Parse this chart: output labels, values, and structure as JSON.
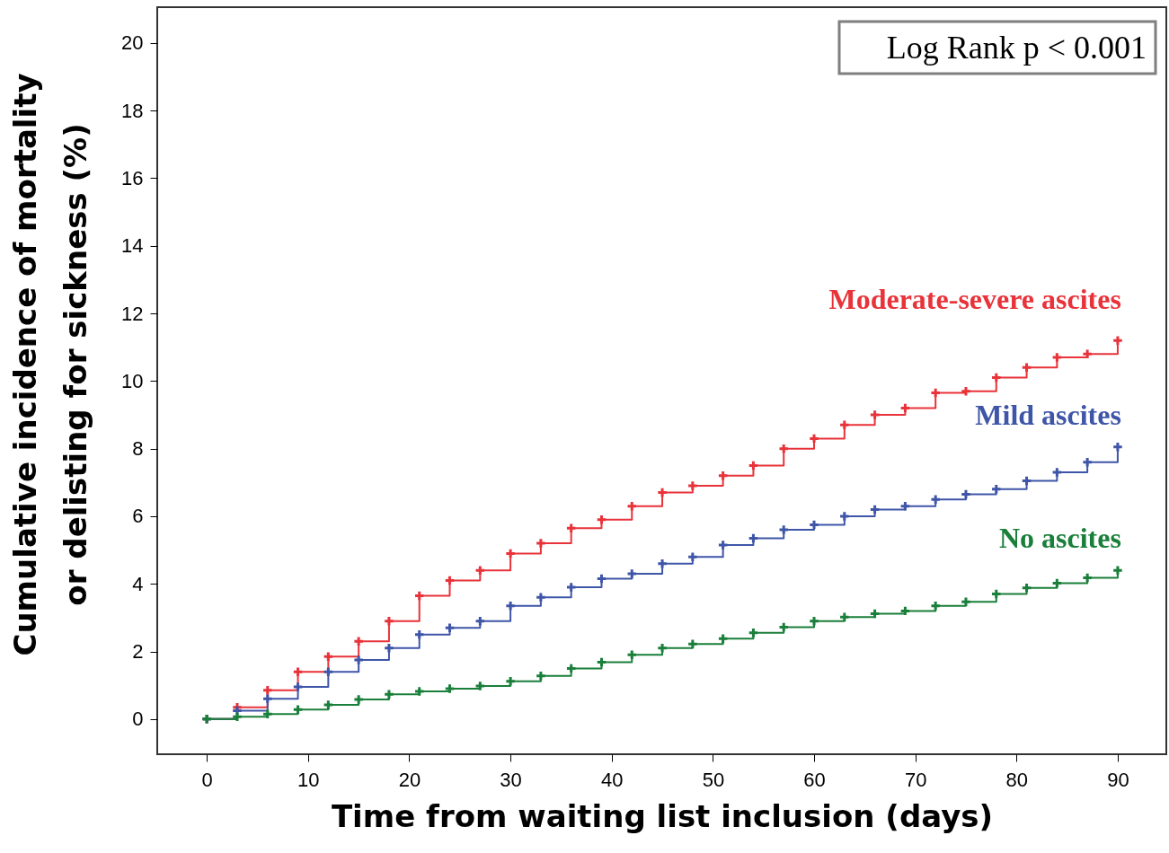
{
  "chart_data": {
    "type": "step",
    "xlabel": "Time from waiting list inclusion (days)",
    "ylabel": "Cumulative incidence of mortality\nor delisting for sickness (%)",
    "x": [
      0,
      3,
      6,
      9,
      12,
      15,
      18,
      21,
      24,
      27,
      30,
      33,
      36,
      39,
      42,
      45,
      48,
      51,
      54,
      57,
      60,
      63,
      66,
      69,
      72,
      75,
      78,
      81,
      84,
      87,
      90
    ],
    "series": [
      {
        "name": "Moderate-severe ascites",
        "color": "#e8333a",
        "values": [
          0,
          0.35,
          0.85,
          1.4,
          1.85,
          2.3,
          2.9,
          3.65,
          4.1,
          4.4,
          4.9,
          5.2,
          5.65,
          5.9,
          6.3,
          6.7,
          6.9,
          7.2,
          7.5,
          8.0,
          8.3,
          8.7,
          9.0,
          9.2,
          9.65,
          9.7,
          10.1,
          10.4,
          10.7,
          10.8,
          11.2
        ]
      },
      {
        "name": "Mild ascites",
        "color": "#3f56a8",
        "values": [
          0,
          0.25,
          0.6,
          0.95,
          1.4,
          1.75,
          2.1,
          2.5,
          2.7,
          2.9,
          3.35,
          3.6,
          3.9,
          4.15,
          4.3,
          4.6,
          4.8,
          5.15,
          5.35,
          5.6,
          5.75,
          6.0,
          6.2,
          6.3,
          6.5,
          6.65,
          6.8,
          7.05,
          7.3,
          7.6,
          8.05
        ]
      },
      {
        "name": "No ascites",
        "color": "#1a7f3a",
        "values": [
          0,
          0.07,
          0.15,
          0.28,
          0.42,
          0.58,
          0.73,
          0.82,
          0.9,
          0.98,
          1.12,
          1.28,
          1.5,
          1.68,
          1.9,
          2.1,
          2.22,
          2.38,
          2.55,
          2.72,
          2.9,
          3.02,
          3.12,
          3.2,
          3.35,
          3.47,
          3.7,
          3.88,
          4.02,
          4.18,
          4.4
        ]
      }
    ],
    "annotations": [
      "Log Rank p < 0.001"
    ],
    "xlim": [
      -4.9,
      94.8
    ],
    "ylim": [
      -1.04,
      21.06
    ],
    "xticks": [
      0,
      10,
      20,
      30,
      40,
      50,
      60,
      70,
      80,
      90
    ],
    "yticks": [
      0,
      2,
      4,
      6,
      8,
      10,
      12,
      14,
      16,
      18,
      20
    ],
    "grid": false,
    "marker": "cross",
    "line_style": "solid"
  }
}
